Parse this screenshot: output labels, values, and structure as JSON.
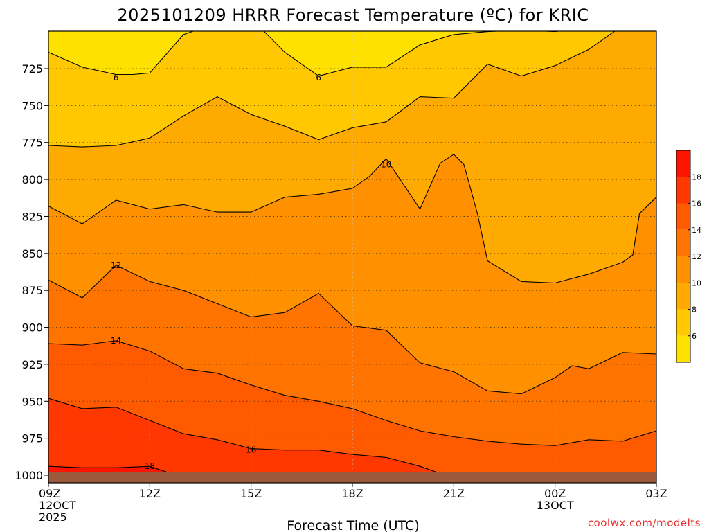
{
  "chart_data": {
    "type": "contour",
    "title": "2025101209 HRRR Forecast Temperature (ºC) for KRIC",
    "xlabel": "Forecast Time (UTC)",
    "ylabel": "",
    "x_hours": [
      9,
      12,
      15,
      18,
      21,
      24,
      27
    ],
    "x_ticks": [
      {
        "hour": 9,
        "lines": [
          "09Z",
          "12OCT",
          "2025"
        ]
      },
      {
        "hour": 12,
        "lines": [
          "12Z"
        ]
      },
      {
        "hour": 15,
        "lines": [
          "15Z"
        ]
      },
      {
        "hour": 18,
        "lines": [
          "18Z"
        ]
      },
      {
        "hour": 21,
        "lines": [
          "21Z"
        ]
      },
      {
        "hour": 24,
        "lines": [
          "00Z",
          "13OCT"
        ]
      },
      {
        "hour": 27,
        "lines": [
          "03Z"
        ]
      }
    ],
    "xlim": [
      9,
      27
    ],
    "y_ticks": [
      725,
      750,
      775,
      800,
      825,
      850,
      875,
      900,
      925,
      950,
      975,
      1000
    ],
    "ylim": [
      1000,
      700
    ],
    "units": "ºC",
    "fill_levels": [
      6,
      8,
      10,
      12,
      14,
      16,
      18
    ],
    "fill_colors": [
      "#ffe100",
      "#ffc800",
      "#ffaa00",
      "#ff9100",
      "#ff7300",
      "#ff5a00",
      "#ff3700",
      "#ff1400"
    ],
    "contours": [
      {
        "level": 6,
        "points": [
          [
            9,
            714
          ],
          [
            10,
            724
          ],
          [
            11,
            729
          ],
          [
            11.5,
            729
          ],
          [
            12,
            728
          ],
          [
            13,
            702
          ],
          [
            14,
            694
          ],
          [
            15,
            691
          ],
          [
            16,
            714
          ],
          [
            17,
            730
          ],
          [
            18,
            724
          ],
          [
            19,
            724
          ],
          [
            20,
            709
          ],
          [
            21,
            702
          ],
          [
            22,
            700
          ],
          [
            23,
            699
          ],
          [
            24,
            700
          ],
          [
            25,
            697
          ],
          [
            26,
            691
          ],
          [
            27,
            693
          ]
        ]
      },
      {
        "level": 8,
        "points": [
          [
            9,
            777
          ],
          [
            10,
            778
          ],
          [
            11,
            777
          ],
          [
            12,
            772
          ],
          [
            13,
            757
          ],
          [
            14,
            744
          ],
          [
            15,
            756
          ],
          [
            16,
            764
          ],
          [
            17,
            773
          ],
          [
            18,
            765
          ],
          [
            19,
            761
          ],
          [
            20,
            744
          ],
          [
            21,
            745
          ],
          [
            22,
            722
          ],
          [
            23,
            730
          ],
          [
            24,
            723
          ],
          [
            25,
            712
          ],
          [
            26,
            696
          ],
          [
            27,
            698
          ]
        ]
      },
      {
        "level": 10,
        "points": [
          [
            9,
            818
          ],
          [
            10,
            830
          ],
          [
            11,
            814
          ],
          [
            12,
            820
          ],
          [
            13,
            817
          ],
          [
            14,
            822
          ],
          [
            15,
            822
          ],
          [
            16,
            812
          ],
          [
            17,
            810
          ],
          [
            18,
            806
          ],
          [
            18.5,
            798
          ],
          [
            19,
            786
          ],
          [
            20,
            820
          ],
          [
            20.6,
            789
          ],
          [
            21,
            783
          ],
          [
            21.3,
            790
          ],
          [
            21.7,
            823
          ],
          [
            22,
            855
          ],
          [
            23,
            869
          ],
          [
            24,
            870
          ],
          [
            25,
            864
          ],
          [
            26,
            856
          ],
          [
            26.3,
            851
          ],
          [
            26.5,
            823
          ],
          [
            27,
            812
          ]
        ]
      },
      {
        "level": 12,
        "points": [
          [
            9,
            868
          ],
          [
            10,
            880
          ],
          [
            11,
            858
          ],
          [
            12,
            869
          ],
          [
            13,
            875
          ],
          [
            14,
            884
          ],
          [
            15,
            893
          ],
          [
            16,
            890
          ],
          [
            17,
            877
          ],
          [
            18,
            899
          ],
          [
            19,
            902
          ],
          [
            20,
            924
          ],
          [
            21,
            930
          ],
          [
            22,
            943
          ],
          [
            23,
            945
          ],
          [
            24,
            934
          ],
          [
            24.5,
            926
          ],
          [
            25,
            928
          ],
          [
            26,
            917
          ],
          [
            27,
            918
          ]
        ]
      },
      {
        "level": 14,
        "points": [
          [
            9,
            911
          ],
          [
            10,
            912
          ],
          [
            11,
            909
          ],
          [
            12,
            916
          ],
          [
            13,
            928
          ],
          [
            14,
            931
          ],
          [
            15,
            939
          ],
          [
            16,
            946
          ],
          [
            17,
            950
          ],
          [
            18,
            955
          ],
          [
            19,
            963
          ],
          [
            20,
            970
          ],
          [
            21,
            974
          ],
          [
            22,
            977
          ],
          [
            23,
            979
          ],
          [
            24,
            980
          ],
          [
            25,
            976
          ],
          [
            26,
            977
          ],
          [
            27,
            970
          ]
        ]
      },
      {
        "level": 16,
        "points": [
          [
            9,
            948
          ],
          [
            10,
            955
          ],
          [
            11,
            954
          ],
          [
            12,
            963
          ],
          [
            13,
            972
          ],
          [
            14,
            976
          ],
          [
            15,
            982
          ],
          [
            16,
            983
          ],
          [
            17,
            983
          ],
          [
            18,
            986
          ],
          [
            19,
            988
          ],
          [
            20,
            994
          ],
          [
            21,
            1002
          ]
        ]
      },
      {
        "level": 18,
        "points": [
          [
            9,
            994
          ],
          [
            10,
            995
          ],
          [
            11,
            995
          ],
          [
            12,
            994
          ],
          [
            12.9,
            1001
          ]
        ]
      }
    ],
    "contour_labels": [
      {
        "level": 6,
        "text": "6",
        "at": [
          11.0,
          731
        ]
      },
      {
        "level": 6,
        "text": "6",
        "at": [
          17.0,
          731
        ]
      },
      {
        "level": 10,
        "text": "10",
        "at": [
          19.0,
          790
        ]
      },
      {
        "level": 12,
        "text": "12",
        "at": [
          11.0,
          858
        ]
      },
      {
        "level": 14,
        "text": "14",
        "at": [
          11.0,
          909
        ]
      },
      {
        "level": 16,
        "text": "16",
        "at": [
          15.0,
          983
        ]
      },
      {
        "level": 18,
        "text": "18",
        "at": [
          12.0,
          994
        ]
      }
    ],
    "surface_pressure": 1000,
    "colorbar": {
      "ticks": [
        6,
        8,
        10,
        12,
        14,
        16,
        18
      ],
      "range": [
        4,
        20
      ]
    },
    "grid": true
  },
  "watermark": "coolwx.com/modelts"
}
